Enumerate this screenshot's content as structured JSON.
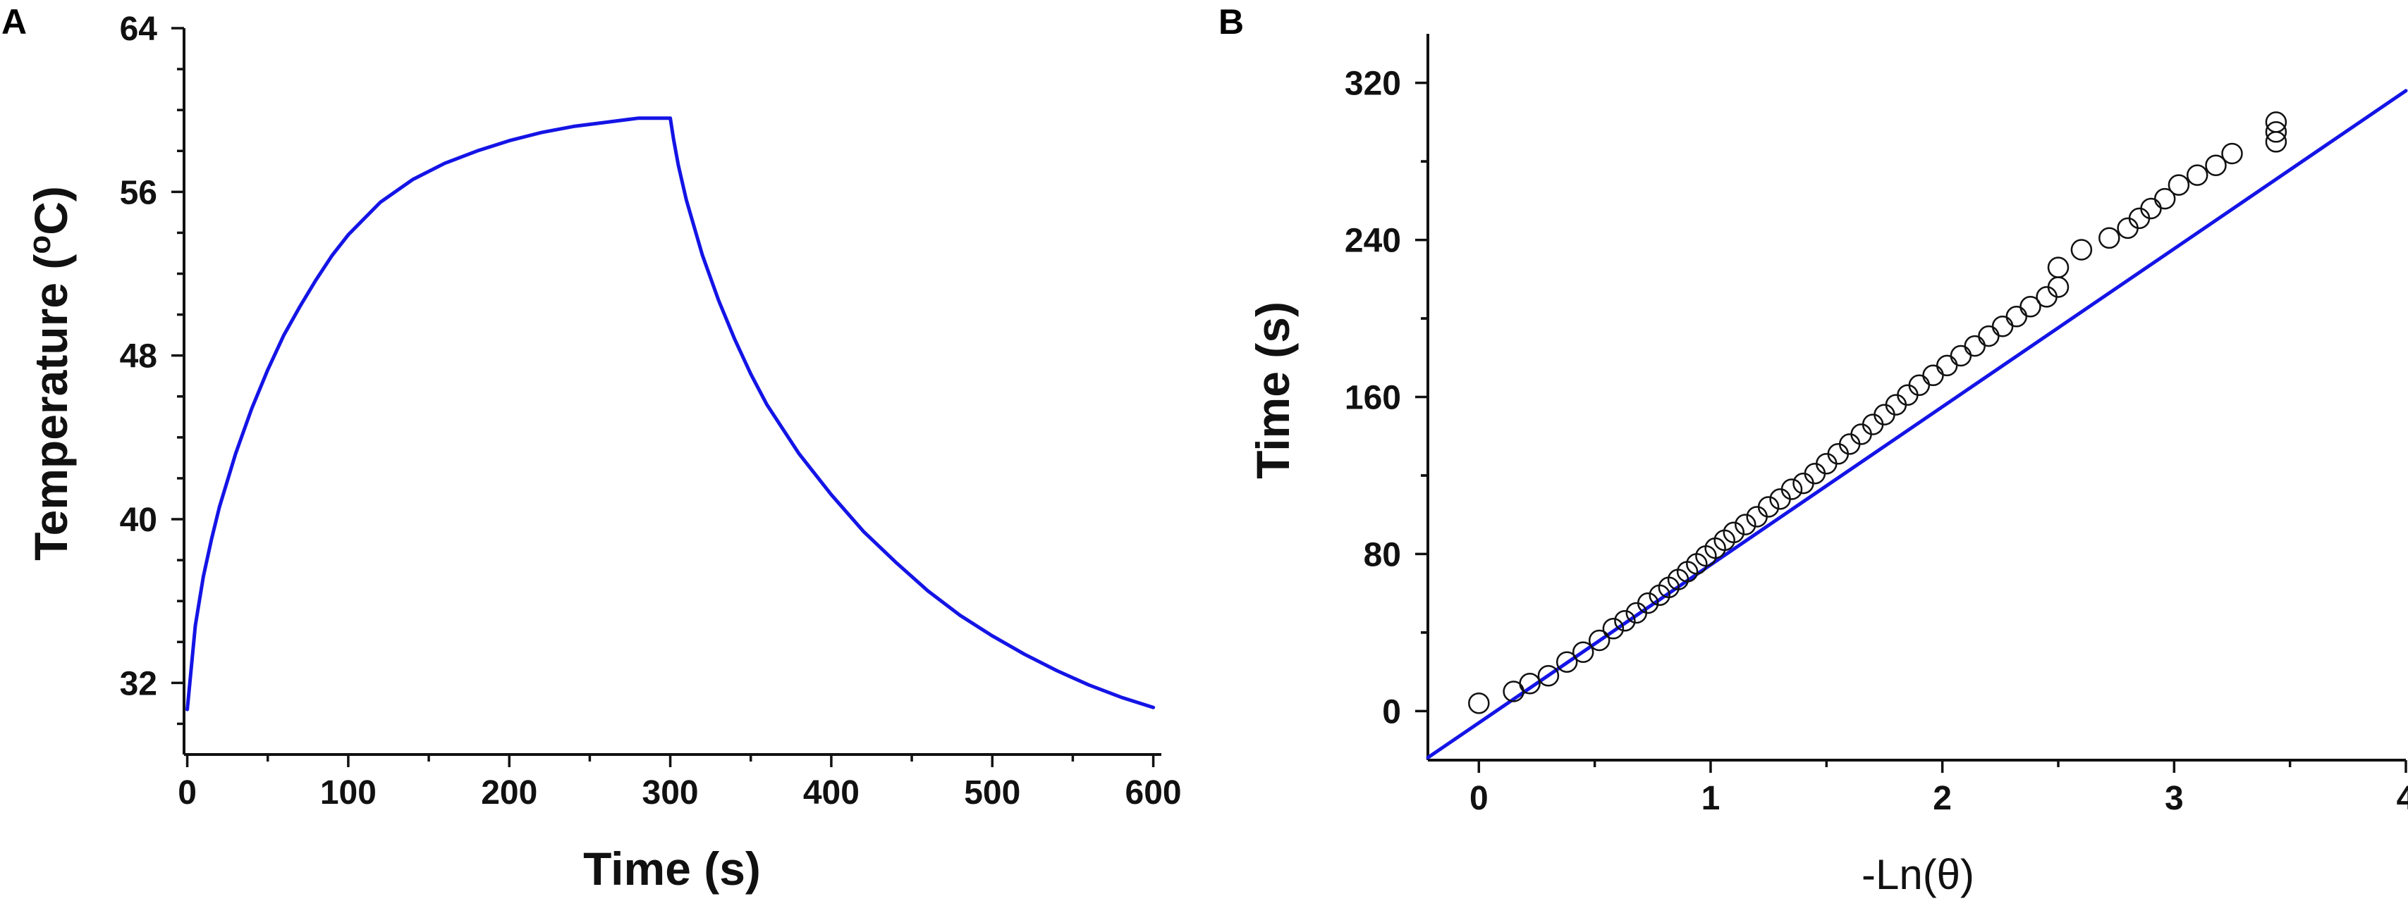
{
  "chart_data": [
    {
      "panel": "A",
      "type": "line",
      "xlabel": "Time (s)",
      "ylabel_main": "Temperature (",
      "ylabel_sup": "o",
      "ylabel_end": "C)",
      "xlim": [
        -2,
        605
      ],
      "ylim": [
        28.5,
        64
      ],
      "xticks": [
        0,
        100,
        200,
        300,
        400,
        500,
        600
      ],
      "yticks": [
        32,
        40,
        48,
        56,
        64
      ],
      "series": [
        {
          "color": "#1414e6",
          "x": [
            0,
            5,
            10,
            15,
            20,
            30,
            40,
            50,
            60,
            70,
            80,
            90,
            100,
            120,
            140,
            160,
            180,
            200,
            220,
            240,
            260,
            280,
            295,
            300,
            302,
            305,
            310,
            320,
            330,
            340,
            350,
            360,
            380,
            400,
            420,
            440,
            460,
            480,
            500,
            520,
            540,
            560,
            580,
            600
          ],
          "y": [
            30.7,
            34.8,
            37.2,
            39.0,
            40.6,
            43.2,
            45.4,
            47.3,
            49.0,
            50.4,
            51.7,
            52.9,
            53.9,
            55.5,
            56.6,
            57.4,
            58.0,
            58.5,
            58.9,
            59.2,
            59.4,
            59.6,
            59.6,
            59.6,
            58.6,
            57.3,
            55.6,
            52.9,
            50.7,
            48.8,
            47.1,
            45.6,
            43.2,
            41.2,
            39.4,
            37.9,
            36.5,
            35.3,
            34.3,
            33.4,
            32.6,
            31.9,
            31.3,
            30.8
          ]
        }
      ]
    },
    {
      "panel": "B",
      "type": "scatter",
      "xlabel": "-Ln(θ)",
      "ylabel": "Time (s)",
      "xlim": [
        -0.22,
        4
      ],
      "ylim": [
        -25,
        345
      ],
      "xticks": [
        0,
        1,
        2,
        3,
        4
      ],
      "yticks": [
        0,
        80,
        160,
        240,
        320
      ],
      "points": {
        "x": [
          0.0,
          0.15,
          0.22,
          0.3,
          0.38,
          0.45,
          0.52,
          0.58,
          0.63,
          0.68,
          0.73,
          0.78,
          0.82,
          0.86,
          0.9,
          0.94,
          0.98,
          1.02,
          1.06,
          1.1,
          1.15,
          1.2,
          1.25,
          1.3,
          1.35,
          1.4,
          1.45,
          1.5,
          1.55,
          1.6,
          1.65,
          1.7,
          1.75,
          1.8,
          1.85,
          1.9,
          1.96,
          2.02,
          2.08,
          2.14,
          2.2,
          2.26,
          2.32,
          2.38,
          2.45,
          2.5,
          2.5,
          2.6,
          2.72,
          2.8,
          2.85,
          2.9,
          2.96,
          3.02,
          3.1,
          3.18,
          3.25,
          3.44,
          3.44,
          3.44
        ],
        "y": [
          4,
          10,
          14,
          18,
          25,
          30,
          36,
          42,
          46,
          50,
          55,
          59,
          63,
          67,
          71,
          75,
          79,
          83,
          87,
          91,
          95,
          99,
          104,
          108,
          113,
          116,
          121,
          126,
          131,
          136,
          141,
          146,
          151,
          156,
          161,
          166,
          171,
          176,
          181,
          186,
          191,
          196,
          201,
          206,
          211,
          216,
          226,
          235,
          241,
          246,
          251,
          256,
          261,
          268,
          273,
          278,
          284,
          290,
          295,
          300
        ]
      },
      "fit_line": {
        "slope": 80.5,
        "intercept": -6
      }
    }
  ],
  "labels": {
    "panel_a": "A",
    "panel_b": "B"
  }
}
